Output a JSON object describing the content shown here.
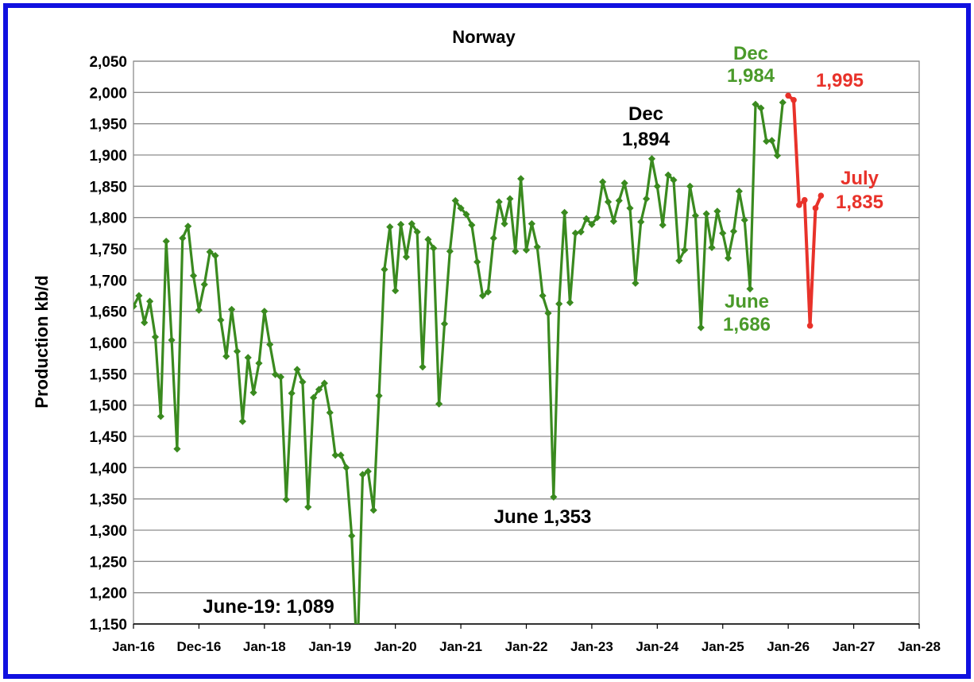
{
  "chart_data": {
    "type": "line",
    "title": "Norway",
    "ylabel": "Production kb/d",
    "xlabel": "",
    "ylim": [
      1150,
      2050
    ],
    "y_ticks": [
      "1,150",
      "1,200",
      "1,250",
      "1,300",
      "1,350",
      "1,400",
      "1,450",
      "1,500",
      "1,550",
      "1,600",
      "1,650",
      "1,700",
      "1,750",
      "1,800",
      "1,850",
      "1,900",
      "1,950",
      "2,000",
      "2,050"
    ],
    "x_ticks": [
      "Jan-16",
      "Dec-16",
      "Jan-18",
      "Jan-19",
      "Jan-20",
      "Jan-21",
      "Jan-22",
      "Jan-23",
      "Jan-24",
      "Jan-25",
      "Jan-26",
      "Jan-27",
      "Jan-28"
    ],
    "grid": true,
    "colors": {
      "actual": "#3a8a1f",
      "projection": "#e8322a",
      "frame": "#1010e0"
    },
    "series": [
      {
        "start": "Jan-16",
        "values": [
          1658,
          1675,
          1632,
          1666,
          1609,
          1482,
          1762,
          1604,
          1430,
          1767,
          1786,
          1707,
          1652,
          1693,
          1745,
          1739,
          1636,
          1578,
          1653,
          1586,
          1474,
          1576,
          1520,
          1567,
          1650,
          1597,
          1549,
          1545,
          1349,
          1519,
          1557,
          1537,
          1337,
          1512,
          1525,
          1535,
          1488,
          1420,
          1420,
          1400,
          1291,
          1089,
          1389,
          1394,
          1332,
          1515,
          1717,
          1785,
          1683,
          1789,
          1737,
          1790,
          1777,
          1561,
          1765,
          1751,
          1502,
          1630,
          1746,
          1827,
          1815,
          1805,
          1788,
          1729,
          1675,
          1681,
          1767,
          1825,
          1790,
          1830,
          1746,
          1862,
          1748,
          1790,
          1753,
          1675,
          1647,
          1353,
          1662,
          1808,
          1664,
          1775,
          1777,
          1798,
          1789,
          1800,
          1857,
          1825,
          1794,
          1827,
          1855,
          1815,
          1695,
          1793,
          1830,
          1894,
          1850,
          1788,
          1868,
          1860,
          1731,
          1748,
          1850,
          1803,
          1624,
          1806,
          1752,
          1810,
          1775,
          1735,
          1778,
          1842,
          1796,
          1686,
          1981,
          1975,
          1922,
          1923,
          1899,
          1984
        ]
      },
      {
        "start": "Jan-26",
        "values": [
          1995,
          1988,
          1820,
          1828,
          1627,
          1815,
          1835
        ]
      }
    ],
    "annotations": [
      {
        "lines": [
          "Dec",
          "1,984"
        ],
        "color": "green"
      },
      {
        "lines": [
          "1,995"
        ],
        "color": "red"
      },
      {
        "lines": [
          "Dec",
          "1,894"
        ],
        "color": "black"
      },
      {
        "lines": [
          "July",
          "1,835"
        ],
        "color": "red"
      },
      {
        "lines": [
          "June",
          "1,686"
        ],
        "color": "green"
      },
      {
        "lines": [
          "June 1,353"
        ],
        "color": "black"
      },
      {
        "lines": [
          "June-19: 1,089"
        ],
        "color": "black"
      }
    ]
  }
}
